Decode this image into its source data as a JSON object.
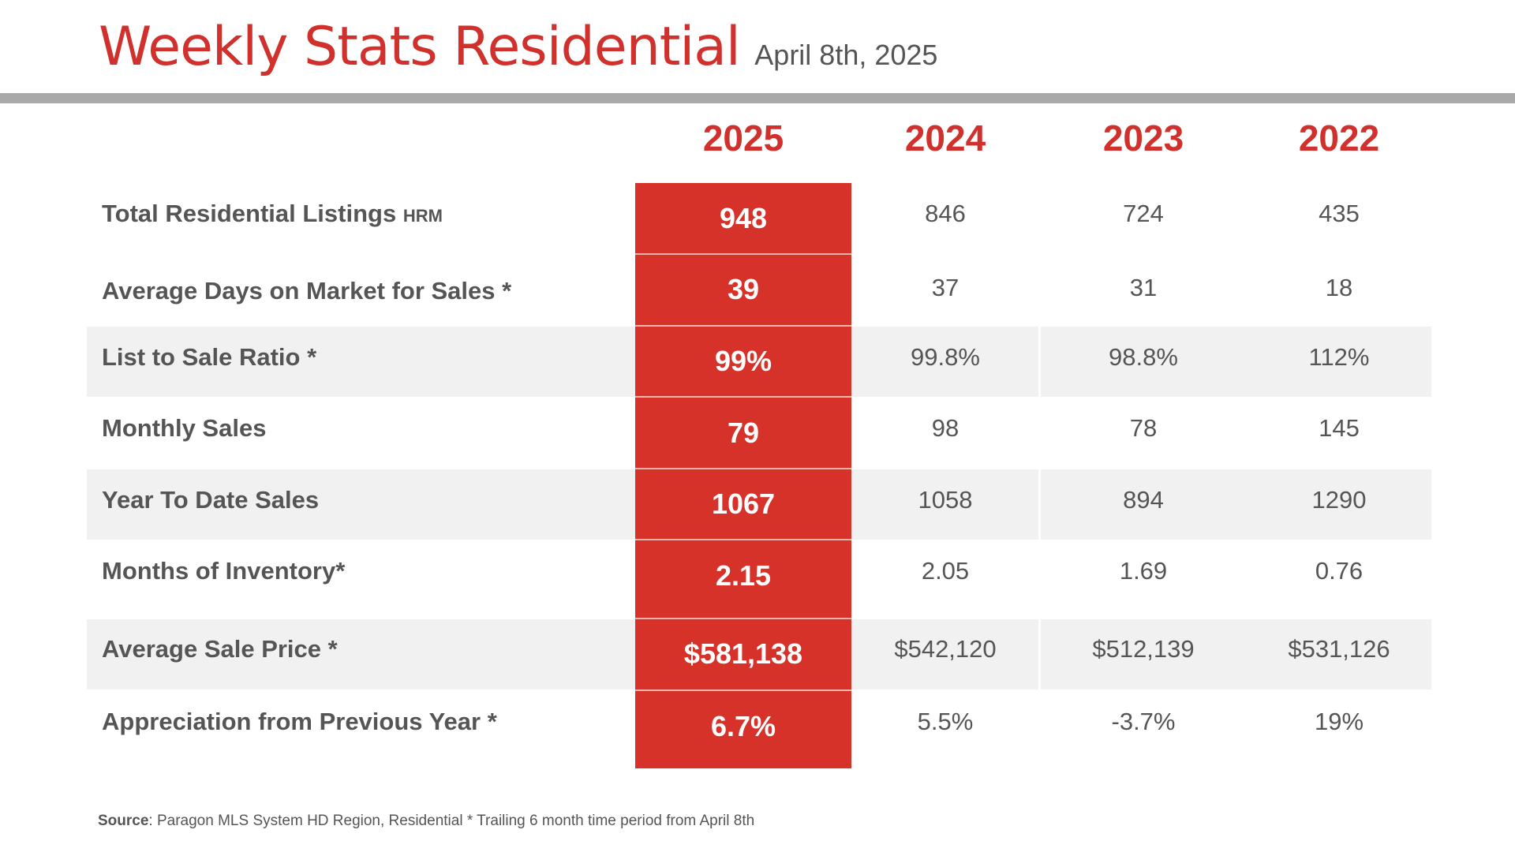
{
  "header": {
    "title": "Weekly Stats Residential",
    "date": "April 8th, 2025"
  },
  "years": [
    "2025",
    "2024",
    "2023",
    "2022"
  ],
  "rows": [
    {
      "label": "Total Residential Listings",
      "suffix": "HRM",
      "values": [
        "948",
        "846",
        "724",
        "435"
      ]
    },
    {
      "label": "Average Days on Market for Sales *",
      "suffix": "",
      "values": [
        "39",
        "37",
        "31",
        "18"
      ]
    },
    {
      "label": "List to Sale Ratio *",
      "suffix": "",
      "values": [
        "99%",
        "99.8%",
        "98.8%",
        "112%"
      ]
    },
    {
      "label": "Monthly Sales",
      "suffix": "",
      "values": [
        "79",
        "98",
        "78",
        "145"
      ]
    },
    {
      "label": "Year To Date Sales",
      "suffix": "",
      "values": [
        "1067",
        "1058",
        "894",
        "1290"
      ]
    },
    {
      "label": "Months of Inventory*",
      "suffix": "",
      "values": [
        "2.15",
        "2.05",
        "1.69",
        "0.76"
      ]
    },
    {
      "label": "Average Sale Price *",
      "suffix": "",
      "values": [
        "$581,138",
        "$542,120",
        "$512,139",
        "$531,126"
      ]
    },
    {
      "label": "Appreciation from Previous Year *",
      "suffix": "",
      "values": [
        "6.7%",
        "5.5%",
        "-3.7%",
        "19%"
      ]
    }
  ],
  "footer": {
    "source_label": "Source",
    "source_text": ": Paragon MLS System HD Region,  Residential * Trailing 6 month time period  from April 8th"
  },
  "colors": {
    "accent": "#d6322a",
    "title": "#d0312d",
    "text": "#555555",
    "band": "#f1f1f1",
    "rule": "#a9a9a9"
  }
}
